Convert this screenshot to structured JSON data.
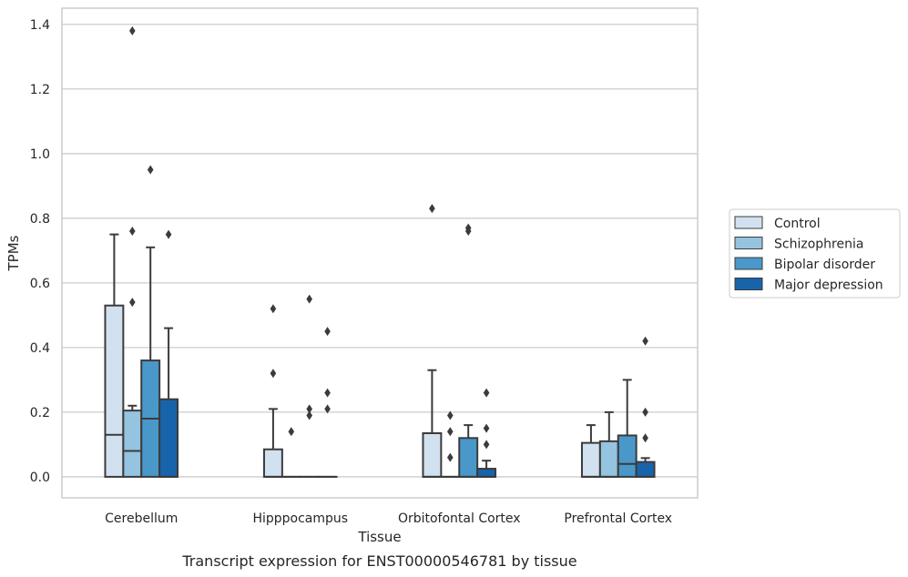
{
  "chart_data": {
    "type": "box",
    "caption": "Transcript expression for ENST00000546781 by tissue",
    "xlabel": "Tissue",
    "ylabel": "TPMs",
    "ylim": [
      -0.065,
      1.45
    ],
    "yticks": [
      0.0,
      0.2,
      0.4,
      0.6,
      0.8,
      1.0,
      1.2,
      1.4
    ],
    "ytick_labels": [
      "0.0",
      "0.2",
      "0.4",
      "0.6",
      "0.8",
      "1.0",
      "1.2",
      "1.4"
    ],
    "grid": "horizontal",
    "legend_position": "right",
    "categories": [
      "Cerebellum",
      "Hipppocampus",
      "Orbitofontal Cortex",
      "Prefrontal Cortex"
    ],
    "series": [
      {
        "name": "Control",
        "color": "#d2e1f0",
        "boxes": [
          {
            "q1": 0.0,
            "median": 0.13,
            "q3": 0.53,
            "whisker_low": 0.0,
            "whisker_high": 0.75,
            "outliers": []
          },
          {
            "q1": 0.0,
            "median": 0.0,
            "q3": 0.085,
            "whisker_low": 0.0,
            "whisker_high": 0.21,
            "outliers": [
              0.32,
              0.52
            ]
          },
          {
            "q1": 0.0,
            "median": 0.0,
            "q3": 0.135,
            "whisker_low": 0.0,
            "whisker_high": 0.33,
            "outliers": [
              0.83
            ]
          },
          {
            "q1": 0.0,
            "median": 0.0,
            "q3": 0.105,
            "whisker_low": 0.0,
            "whisker_high": 0.16,
            "outliers": []
          }
        ]
      },
      {
        "name": "Schizophrenia",
        "color": "#94c4df",
        "boxes": [
          {
            "q1": 0.0,
            "median": 0.08,
            "q3": 0.205,
            "whisker_low": 0.0,
            "whisker_high": 0.22,
            "outliers": [
              0.54,
              0.76,
              1.38
            ]
          },
          {
            "q1": 0.0,
            "median": 0.0,
            "q3": 0.0,
            "whisker_low": 0.0,
            "whisker_high": 0.0,
            "outliers": [
              0.14
            ]
          },
          {
            "q1": 0.0,
            "median": 0.0,
            "q3": 0.0,
            "whisker_low": 0.0,
            "whisker_high": 0.0,
            "outliers": [
              0.06,
              0.14,
              0.19
            ]
          },
          {
            "q1": 0.0,
            "median": 0.0,
            "q3": 0.11,
            "whisker_low": 0.0,
            "whisker_high": 0.2,
            "outliers": []
          }
        ]
      },
      {
        "name": "Bipolar disorder",
        "color": "#4a98c9",
        "boxes": [
          {
            "q1": 0.0,
            "median": 0.18,
            "q3": 0.36,
            "whisker_low": 0.0,
            "whisker_high": 0.71,
            "outliers": [
              0.95
            ]
          },
          {
            "q1": 0.0,
            "median": 0.0,
            "q3": 0.0,
            "whisker_low": 0.0,
            "whisker_high": 0.0,
            "outliers": [
              0.19,
              0.21,
              0.55
            ]
          },
          {
            "q1": 0.0,
            "median": 0.0,
            "q3": 0.12,
            "whisker_low": 0.0,
            "whisker_high": 0.16,
            "outliers": [
              0.76,
              0.77
            ]
          },
          {
            "q1": 0.0,
            "median": 0.04,
            "q3": 0.128,
            "whisker_low": 0.0,
            "whisker_high": 0.3,
            "outliers": []
          }
        ]
      },
      {
        "name": "Major depression",
        "color": "#1764ab",
        "boxes": [
          {
            "q1": 0.0,
            "median": 0.0,
            "q3": 0.24,
            "whisker_low": 0.0,
            "whisker_high": 0.46,
            "outliers": [
              0.75
            ]
          },
          {
            "q1": 0.0,
            "median": 0.0,
            "q3": 0.0,
            "whisker_low": 0.0,
            "whisker_high": 0.0,
            "outliers": [
              0.21,
              0.26,
              0.45
            ]
          },
          {
            "q1": 0.0,
            "median": 0.0,
            "q3": 0.025,
            "whisker_low": 0.0,
            "whisker_high": 0.05,
            "outliers": [
              0.1,
              0.15,
              0.26
            ]
          },
          {
            "q1": 0.0,
            "median": 0.0,
            "q3": 0.046,
            "whisker_low": 0.0,
            "whisker_high": 0.058,
            "outliers": [
              0.12,
              0.2,
              0.42
            ]
          }
        ]
      }
    ]
  }
}
